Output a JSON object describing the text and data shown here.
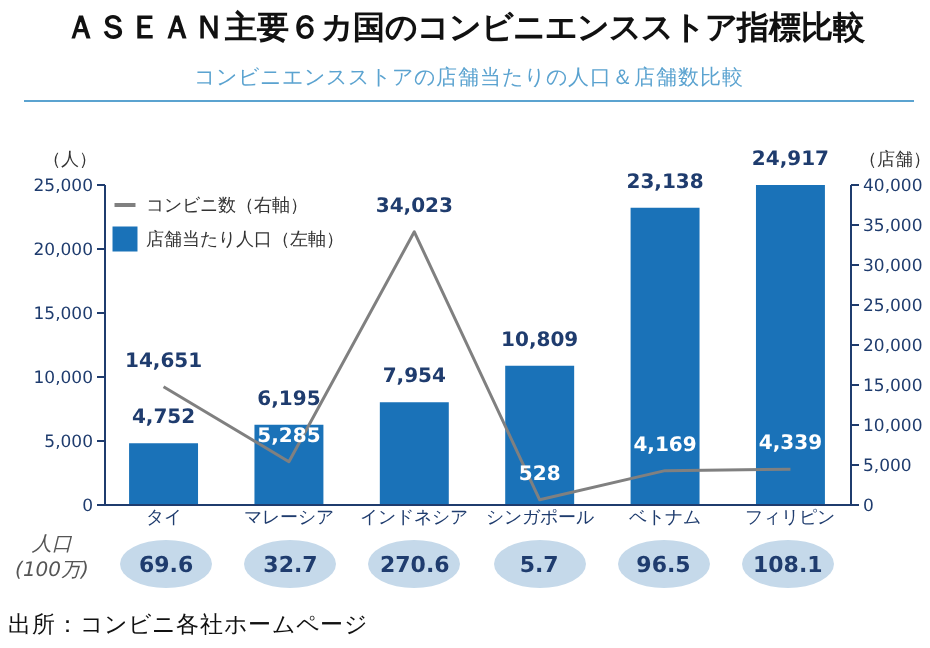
{
  "chart_data": {
    "type": "bar",
    "title": "ＡＳＥＡＮ主要６カ国のコンビニエンスストア指標比較",
    "subtitle": "コンビニエンスストアの店舗当たりの人口＆店舗数比較",
    "ylabel": "（人）",
    "y2label": "（店舗）",
    "categories": [
      "タイ",
      "マレーシア",
      "インドネシア",
      "シンガポール",
      "ベトナム",
      "フィリピン"
    ],
    "series": [
      {
        "name": "店舗当たり人口（左軸）",
        "color": "#1a72b8",
        "values": [
          4752,
          6195,
          7954,
          10809,
          23138,
          24917
        ],
        "value_labels": [
          "4,752",
          "6,195",
          "7,954",
          "10,809",
          "23,138",
          "24,917"
        ]
      },
      {
        "name": "コンビニ数（右軸）",
        "type": "line",
        "axis": "y2",
        "color": "#808080",
        "values": [
          14651,
          5285,
          34023,
          528,
          4169,
          4339
        ],
        "value_labels": [
          "14,651",
          "5,285",
          "34,023",
          "528",
          "4,169",
          "4,339"
        ]
      }
    ],
    "ylim": [
      0,
      25000
    ],
    "yticks": [
      0,
      {
        "value": 5000,
        "label": "5,000"
      },
      {
        "value": 10000,
        "label": "10,000"
      },
      {
        "value": 15000,
        "label": "15,000"
      },
      {
        "value": 20000,
        "label": "20,000"
      },
      {
        "value": 25000,
        "label": "25,000"
      }
    ],
    "y2lim": [
      0,
      40000
    ],
    "y2ticks": [
      0,
      {
        "value": 5000,
        "label": "5,000"
      },
      {
        "value": 10000,
        "label": "10,000"
      },
      {
        "value": 15000,
        "label": "15,000"
      },
      {
        "value": 20000,
        "label": "20,000"
      },
      {
        "value": 25000,
        "label": "25,000"
      },
      {
        "value": 30000,
        "label": "30,000"
      },
      {
        "value": 35000,
        "label": "35,000"
      },
      {
        "value": 40000,
        "label": "40,000"
      }
    ],
    "legend": "top left",
    "annotations": [
      "人口 (100万)",
      "69.6",
      "32.7",
      "270.6",
      "5.7",
      "96.5",
      "108.1",
      "出所：コンビニ各社ホームページ"
    ]
  }
}
